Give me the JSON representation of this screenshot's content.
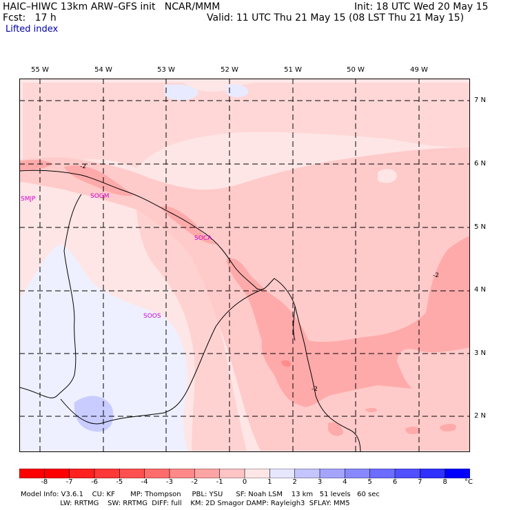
{
  "header": {
    "model_line": "HAIC–HIWC 13km ARW–GFS init   NCAR/MMM",
    "fcst_line": "Fcst:   17 h",
    "init_line": "Init: 18 UTC Wed 20 May 15",
    "valid_line": "Valid: 11 UTC Thu 21 May 15 (08 LST Thu 21 May 15)",
    "field_name": "Lifted index"
  },
  "map": {
    "lon_labels": [
      "55 W",
      "54 W",
      "53 W",
      "52 W",
      "51 W",
      "50 W",
      "49 W"
    ],
    "lat_labels": [
      "7 N",
      "6 N",
      "5 N",
      "4 N",
      "3 N",
      "2 N"
    ],
    "stations": [
      "SMJP",
      "SOCA",
      "SOOS",
      "SOGM"
    ],
    "contour_labels": [
      "-2",
      "-2",
      "-2"
    ]
  },
  "colorbar": {
    "labels": [
      "-8",
      "-7",
      "-6",
      "-5",
      "-4",
      "-3",
      "-2",
      "-1",
      "0",
      "1",
      "2",
      "3",
      "4",
      "5",
      "6",
      "7",
      "8"
    ],
    "unit": "°C",
    "colors": [
      "#ff0000",
      "#ff2020",
      "#ff3838",
      "#ff5050",
      "#ff6c6c",
      "#ff8888",
      "#ffa4a4",
      "#ffc4c4",
      "#ffe6e6",
      "#e6e6ff",
      "#c4c4ff",
      "#a4a4ff",
      "#8888ff",
      "#6c6cff",
      "#5050ff",
      "#3030ff",
      "#0000ff"
    ]
  },
  "footer": {
    "line1": "Model Info: V3.6.1    CU: KF       MP: Thompson     PBL: YSU      SF: Noah LSM    13 km   51 levels   60 sec",
    "line2": "                  LW: RRTMG    SW: RRTMG  DIFF: full    KM: 2D Smagor DAMP: Rayleigh3  SFLAY: MM5"
  }
}
